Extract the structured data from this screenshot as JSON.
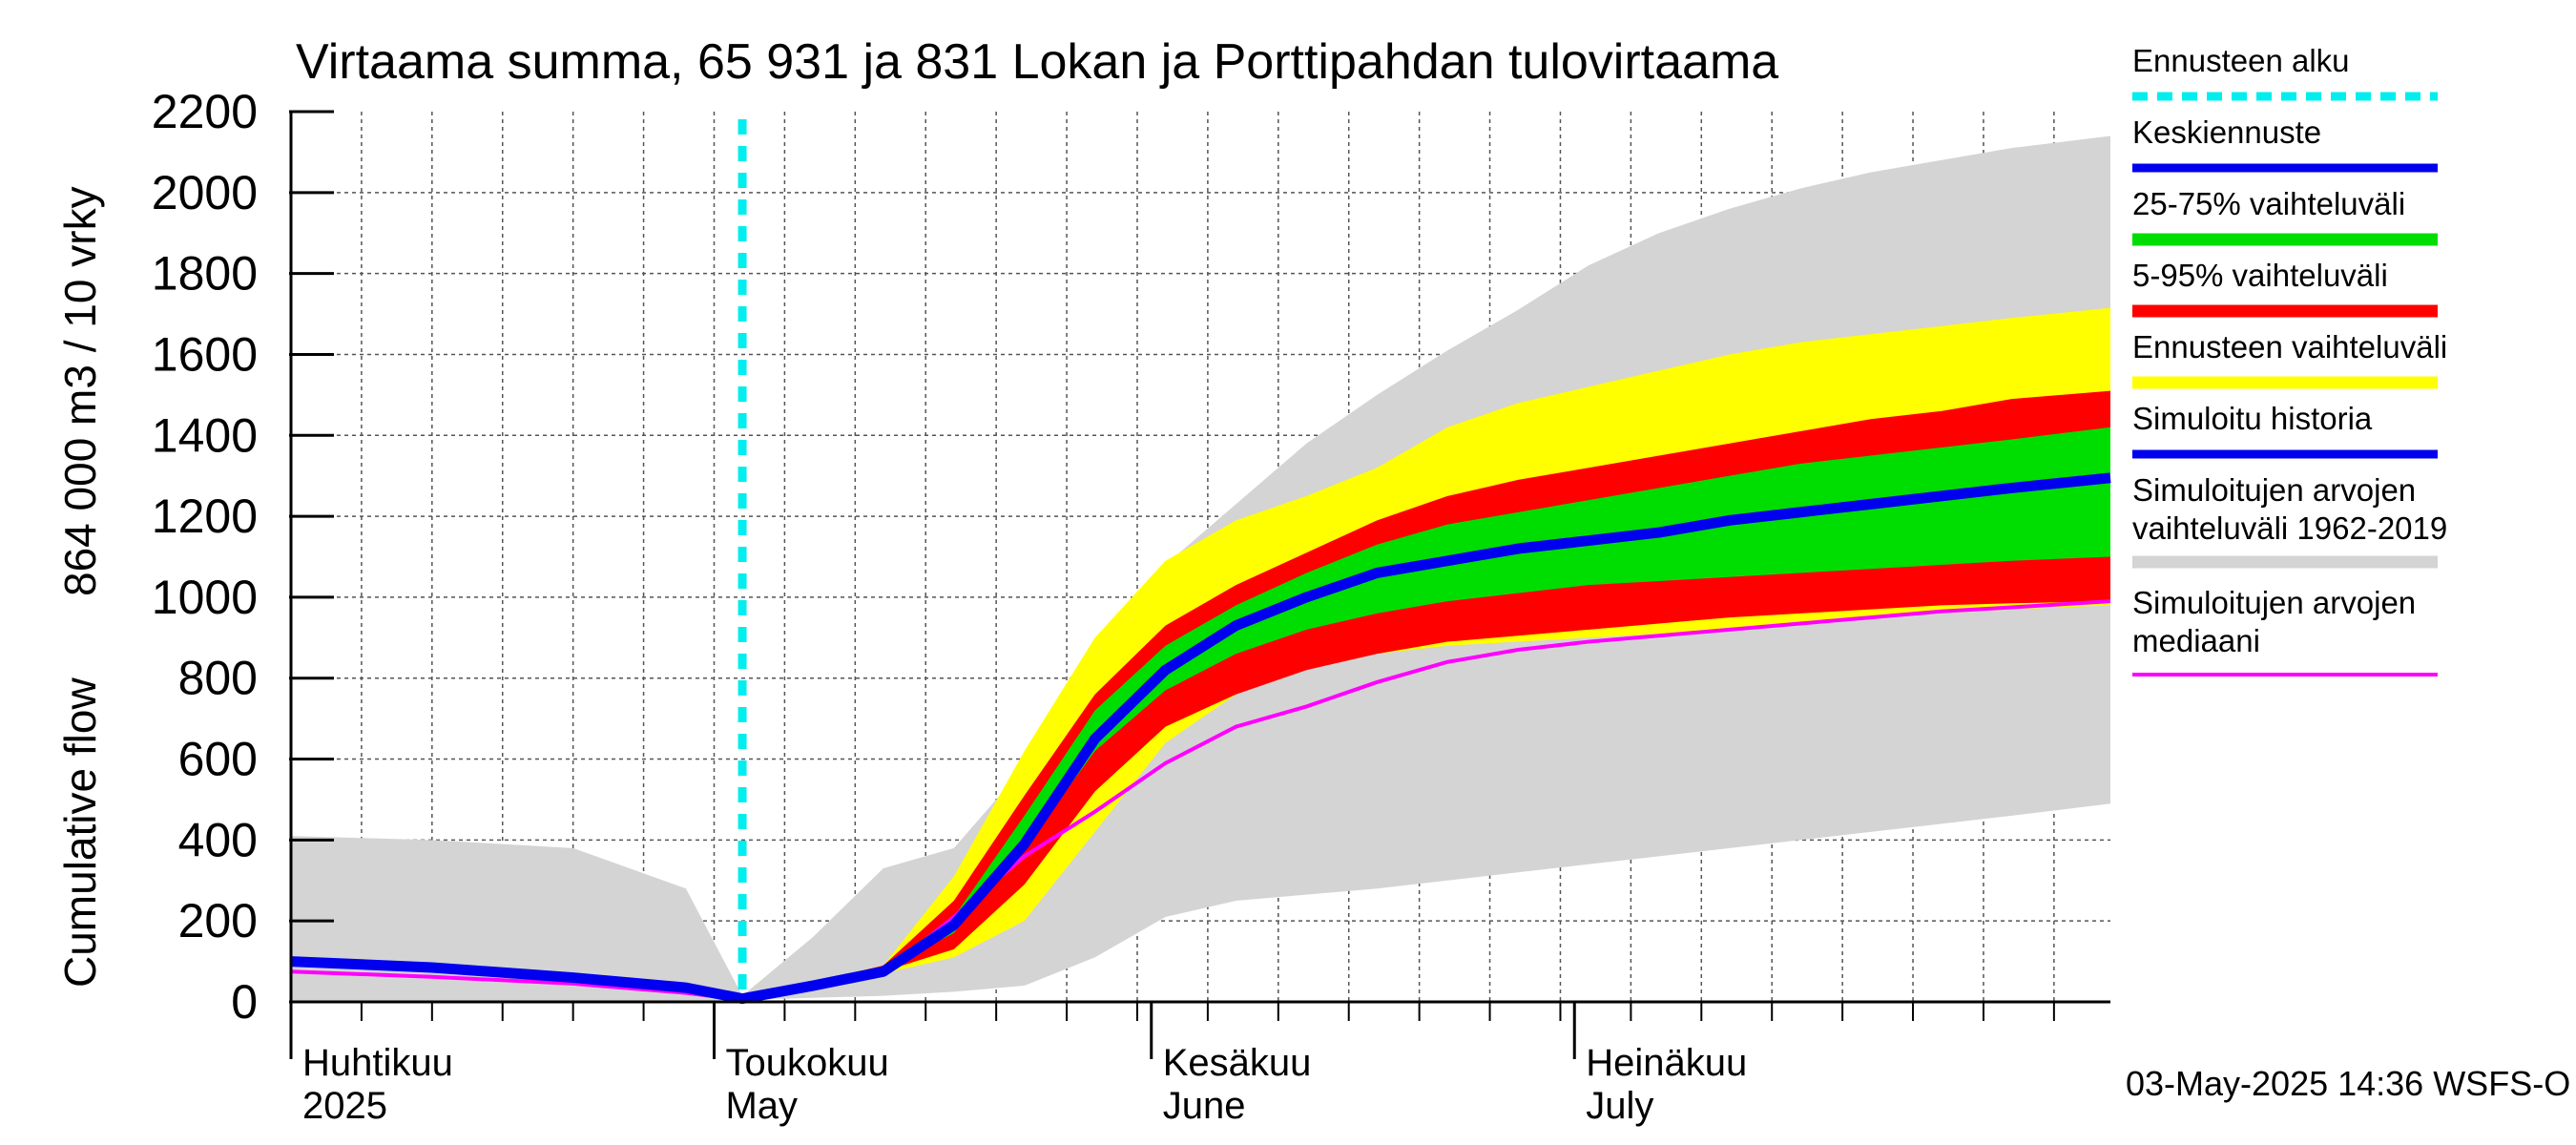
{
  "chart_data": {
    "type": "area",
    "title": "Virtaama summa, 65 931 ja 831 Lokan ja Porttipahdan tulovirtaama",
    "ylabel_fi": "Cumulative flow",
    "ylabel_units": "864 000 m3 / 10 vrky",
    "ylim": [
      0,
      2200
    ],
    "yticks": [
      "0",
      "200",
      "400",
      "600",
      "800",
      "1000",
      "1200",
      "1400",
      "1600",
      "1800",
      "2000",
      "2200"
    ],
    "xlim_days": [
      0,
      129
    ],
    "forecast_start_day": 32,
    "month_labels": [
      {
        "day": 0,
        "fi": "Huhtikuu",
        "en": "2025"
      },
      {
        "day": 30,
        "fi": "Toukokuu",
        "en": "May"
      },
      {
        "day": 61,
        "fi": "Kesäkuu",
        "en": "June"
      },
      {
        "day": 91,
        "fi": "Heinäkuu",
        "en": "July"
      }
    ],
    "x_days": [
      0,
      10,
      20,
      28,
      32,
      37,
      42,
      47,
      52,
      57,
      62,
      67,
      72,
      77,
      82,
      87,
      92,
      97,
      102,
      107,
      112,
      117,
      122,
      129
    ],
    "series": [
      {
        "name": "Simuloitujen arvojen vaihteluväli 1962-2019",
        "color": "#d4d4d4",
        "low": [
          0,
          0,
          0,
          0,
          5,
          10,
          15,
          25,
          40,
          110,
          210,
          250,
          265,
          280,
          300,
          320,
          340,
          360,
          380,
          400,
          420,
          440,
          460,
          490
        ],
        "high": [
          410,
          400,
          380,
          280,
          15,
          160,
          330,
          380,
          580,
          880,
          1080,
          1230,
          1380,
          1500,
          1610,
          1710,
          1820,
          1900,
          1960,
          2010,
          2050,
          2080,
          2110,
          2140
        ]
      },
      {
        "name": "Ennusteen vaihteluväli",
        "color": "#ffff00",
        "low": [
          null,
          null,
          null,
          null,
          5,
          35,
          70,
          110,
          200,
          420,
          640,
          760,
          830,
          860,
          880,
          890,
          900,
          910,
          920,
          940,
          950,
          960,
          970,
          980
        ],
        "high": [
          null,
          null,
          null,
          null,
          15,
          50,
          90,
          310,
          620,
          900,
          1090,
          1190,
          1250,
          1320,
          1420,
          1480,
          1520,
          1560,
          1600,
          1630,
          1650,
          1670,
          1690,
          1715
        ]
      },
      {
        "name": "5-95% vaihteluväli",
        "color": "#ff0000",
        "low": [
          null,
          null,
          null,
          null,
          5,
          38,
          75,
          130,
          290,
          520,
          680,
          760,
          820,
          860,
          890,
          905,
          920,
          935,
          950,
          960,
          970,
          980,
          985,
          990
        ],
        "high": [
          null,
          null,
          null,
          null,
          12,
          48,
          90,
          250,
          510,
          760,
          930,
          1030,
          1110,
          1190,
          1250,
          1290,
          1320,
          1350,
          1380,
          1410,
          1440,
          1460,
          1490,
          1510
        ]
      },
      {
        "name": "25-75% vaihteluväli",
        "color": "#00dd00",
        "low": [
          null,
          null,
          null,
          null,
          8,
          40,
          80,
          170,
          380,
          620,
          770,
          860,
          920,
          960,
          990,
          1010,
          1030,
          1040,
          1050,
          1060,
          1070,
          1080,
          1090,
          1100
        ]
      },
      {
        "name": "Simuloitujen arvojen mediaani",
        "color": "#ff00ff",
        "values": [
          75,
          62,
          45,
          22,
          5,
          35,
          70,
          210,
          360,
          470,
          590,
          680,
          730,
          790,
          840,
          870,
          890,
          905,
          920,
          935,
          950,
          965,
          975,
          990
        ]
      },
      {
        "name": "Keskiennuste",
        "color": "#0000ee",
        "values": [
          100,
          85,
          60,
          35,
          8,
          40,
          75,
          190,
          390,
          650,
          820,
          930,
          1000,
          1060,
          1090,
          1120,
          1140,
          1160,
          1190,
          1210,
          1230,
          1250,
          1270,
          1295
        ]
      }
    ],
    "band_25_75_high": [
      null,
      null,
      null,
      null,
      10,
      46,
      85,
      210,
      460,
      720,
      880,
      980,
      1060,
      1130,
      1180,
      1210,
      1240,
      1270,
      1300,
      1330,
      1350,
      1370,
      1390,
      1420
    ],
    "legend": [
      {
        "label": "Ennusteen alku",
        "color": "#00eeee",
        "style": "dash"
      },
      {
        "label": "Keskiennuste",
        "color": "#0000ee",
        "style": "line"
      },
      {
        "label": "25-75% vaihteluväli",
        "color": "#00dd00",
        "style": "thick"
      },
      {
        "label": "5-95% vaihteluväli",
        "color": "#ff0000",
        "style": "thick"
      },
      {
        "label": "Ennusteen vaihteluväli",
        "color": "#ffff00",
        "style": "thick"
      },
      {
        "label": "Simuloitu historia",
        "color": "#0000ee",
        "style": "line"
      },
      {
        "label": "Simuloitujen arvojen",
        "label2": "vaihteluväli 1962-2019",
        "color": "#d4d4d4",
        "style": "thick"
      },
      {
        "label": "Simuloitujen arvojen",
        "label2": "mediaani",
        "color": "#ff00ff",
        "style": "thin"
      }
    ],
    "footer": "03-May-2025 14:36 WSFS-O"
  }
}
